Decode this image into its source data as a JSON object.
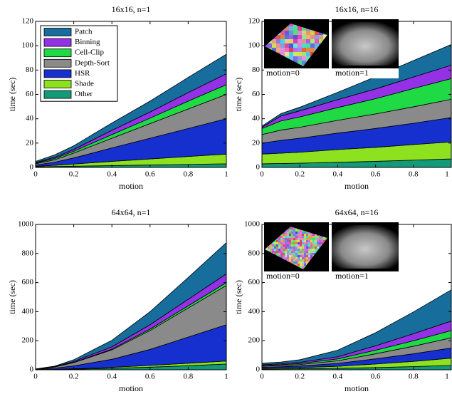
{
  "chart_data": [
    {
      "type": "stacked-area",
      "title": "16x16, n=1",
      "xlabel": "motion",
      "ylabel": "time (sec)",
      "x": [
        0,
        0.1,
        0.2,
        0.4,
        0.6,
        0.8,
        1
      ],
      "xlim": [
        0,
        1
      ],
      "xticks": [
        0,
        0.2,
        0.4,
        0.6,
        0.8,
        1
      ],
      "ylim": [
        0,
        120
      ],
      "yticks": [
        0,
        20,
        40,
        60,
        80,
        100,
        120
      ],
      "legend": "upper left",
      "series": [
        {
          "name": "Other",
          "color": "#139a78",
          "values": [
            0.5,
            0.8,
            1,
            1.5,
            2,
            2.5,
            3
          ]
        },
        {
          "name": "Shade",
          "color": "#8de11e",
          "values": [
            0.5,
            1,
            1.8,
            3.5,
            5,
            6.5,
            8
          ]
        },
        {
          "name": "HSR",
          "color": "#1630d0",
          "values": [
            1,
            2.5,
            5,
            11,
            17,
            23,
            29
          ]
        },
        {
          "name": "Depth-Sort",
          "color": "#8a8a8a",
          "values": [
            1,
            2,
            4,
            8,
            12,
            16,
            20
          ]
        },
        {
          "name": "Cell-Clip",
          "color": "#1fd945",
          "values": [
            0.5,
            1,
            1.5,
            3,
            4.5,
            6.5,
            8
          ]
        },
        {
          "name": "Binning",
          "color": "#9431e6",
          "values": [
            0.5,
            1,
            1.5,
            3.5,
            5,
            7,
            9
          ]
        },
        {
          "name": "Patch",
          "color": "#176d9c",
          "values": [
            1,
            2,
            3,
            6,
            9,
            12.5,
            16
          ]
        }
      ]
    },
    {
      "type": "stacked-area",
      "title": "16x16, n=16",
      "xlabel": "motion",
      "ylabel": "time (sec)",
      "x": [
        0,
        0.1,
        0.2,
        0.4,
        0.6,
        0.8,
        1
      ],
      "xlim": [
        0,
        1
      ],
      "xticks": [
        0,
        0.2,
        0.4,
        0.6,
        0.8,
        1
      ],
      "ylim": [
        0,
        120
      ],
      "yticks": [
        0,
        20,
        40,
        60,
        80,
        100,
        120
      ],
      "annotations": [
        "motion=0",
        "motion=1"
      ],
      "series": [
        {
          "color": "#139a78",
          "values": [
            3,
            3.2,
            3.5,
            4.2,
            5,
            6,
            7
          ]
        },
        {
          "color": "#8de11e",
          "values": [
            8,
            8.5,
            9,
            10.5,
            11.5,
            12.8,
            14
          ]
        },
        {
          "color": "#1630d0",
          "values": [
            9,
            10.5,
            11.5,
            13.5,
            15.5,
            17.5,
            20
          ]
        },
        {
          "color": "#8a8a8a",
          "values": [
            7,
            8.5,
            9,
            10.5,
            12,
            13.5,
            15
          ]
        },
        {
          "color": "#1fd945",
          "values": [
            5,
            7.5,
            8.5,
            10.5,
            12.5,
            15,
            17
          ]
        },
        {
          "color": "#9431e6",
          "values": [
            1,
            4,
            5,
            6.5,
            8,
            9.5,
            11
          ]
        },
        {
          "color": "#176d9c",
          "values": [
            1,
            2,
            3,
            6,
            10,
            13.5,
            17
          ]
        }
      ]
    },
    {
      "type": "stacked-area",
      "title": "64x64, n=1",
      "xlabel": "motion",
      "ylabel": "time (sec)",
      "x": [
        0,
        0.1,
        0.2,
        0.4,
        0.6,
        0.8,
        1
      ],
      "xlim": [
        0,
        1
      ],
      "xticks": [
        0,
        0.2,
        0.4,
        0.6,
        0.8,
        1
      ],
      "ylim": [
        0,
        1000
      ],
      "yticks": [
        0,
        200,
        400,
        600,
        800,
        1000
      ],
      "series": [
        {
          "color": "#139a78",
          "values": [
            1,
            2,
            4,
            10,
            18,
            28,
            40
          ]
        },
        {
          "color": "#8de11e",
          "values": [
            1,
            1,
            3,
            7,
            12,
            17,
            20
          ]
        },
        {
          "color": "#1630d0",
          "values": [
            1,
            8,
            20,
            55,
            110,
            180,
            250
          ]
        },
        {
          "color": "#8a8a8a",
          "values": [
            1,
            8,
            22,
            65,
            130,
            200,
            270
          ]
        },
        {
          "color": "#1fd945",
          "values": [
            0.5,
            1,
            2,
            5,
            10,
            15,
            20
          ]
        },
        {
          "color": "#9431e6",
          "values": [
            0.5,
            2,
            6,
            16,
            30,
            45,
            60
          ]
        },
        {
          "color": "#176d9c",
          "values": [
            1,
            3,
            12,
            45,
            90,
            150,
            215
          ]
        }
      ]
    },
    {
      "type": "stacked-area",
      "title": "64x64, n=16",
      "xlabel": "motion",
      "ylabel": "time (sec)",
      "x": [
        0,
        0.1,
        0.2,
        0.4,
        0.6,
        0.8,
        1
      ],
      "xlim": [
        0,
        1
      ],
      "xticks": [
        0,
        0.2,
        0.4,
        0.6,
        0.8,
        1
      ],
      "ylim": [
        0,
        1000
      ],
      "yticks": [
        0,
        200,
        400,
        600,
        800,
        1000
      ],
      "annotations": [
        "motion=0",
        "motion=1"
      ],
      "series": [
        {
          "color": "#139a78",
          "values": [
            5,
            6,
            7,
            10,
            15,
            22,
            30
          ]
        },
        {
          "color": "#8de11e",
          "values": [
            5,
            6,
            8,
            14,
            25,
            36,
            50
          ]
        },
        {
          "color": "#1630d0",
          "values": [
            8,
            9,
            11,
            20,
            35,
            52,
            70
          ]
        },
        {
          "color": "#8a8a8a",
          "values": [
            7,
            8,
            10,
            18,
            35,
            52,
            70
          ]
        },
        {
          "color": "#1fd945",
          "values": [
            5,
            6,
            7,
            13,
            25,
            38,
            50
          ]
        },
        {
          "color": "#9431e6",
          "values": [
            5,
            6,
            8,
            15,
            30,
            48,
            65
          ]
        },
        {
          "color": "#176d9c",
          "values": [
            10,
            12,
            18,
            45,
            90,
            150,
            215
          ]
        }
      ]
    }
  ]
}
